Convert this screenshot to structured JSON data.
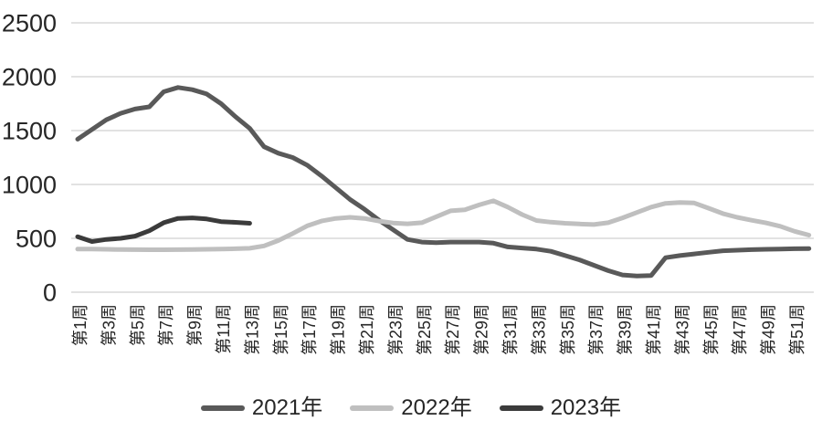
{
  "colors": {
    "background": "#ffffff",
    "gridline": "#d9d9d9",
    "axis_text": "#262626"
  },
  "chart_data": {
    "type": "line",
    "grid": true,
    "legend_position": "bottom",
    "y_axis": {
      "ticks": [
        0,
        500,
        1000,
        1500,
        2000,
        2500
      ],
      "range": [
        0,
        2500
      ]
    },
    "x_axis": {
      "weeks_total": 52,
      "tick_weeks": [
        1,
        3,
        5,
        7,
        9,
        11,
        13,
        15,
        17,
        19,
        21,
        23,
        25,
        27,
        29,
        31,
        33,
        35,
        37,
        39,
        41,
        43,
        45,
        47,
        49,
        51
      ],
      "tick_labels": [
        "第1周",
        "第3周",
        "第5周",
        "第7周",
        "第9周",
        "第11周",
        "第13周",
        "第15周",
        "第17周",
        "第19周",
        "第21周",
        "第23周",
        "第25周",
        "第27周",
        "第29周",
        "第31周",
        "第33周",
        "第35周",
        "第37周",
        "第39周",
        "第41周",
        "第43周",
        "第45周",
        "第47周",
        "第49周",
        "第51周"
      ]
    },
    "series": [
      {
        "name": "2021年",
        "color": "#595959",
        "start_week": 1,
        "values": [
          1420,
          1510,
          1600,
          1660,
          1700,
          1720,
          1860,
          1900,
          1880,
          1840,
          1750,
          1630,
          1520,
          1350,
          1290,
          1250,
          1180,
          1080,
          970,
          860,
          770,
          670,
          580,
          490,
          465,
          460,
          465,
          465,
          465,
          455,
          420,
          410,
          400,
          380,
          340,
          300,
          250,
          200,
          160,
          150,
          155,
          320,
          340,
          355,
          370,
          385,
          390,
          395,
          398,
          400,
          403,
          405
        ]
      },
      {
        "name": "2022年",
        "color": "#bfbfbf",
        "start_week": 1,
        "values": [
          400,
          400,
          398,
          396,
          395,
          394,
          394,
          395,
          396,
          398,
          400,
          403,
          408,
          430,
          480,
          545,
          615,
          660,
          685,
          695,
          685,
          660,
          642,
          635,
          645,
          700,
          755,
          765,
          810,
          848,
          790,
          720,
          665,
          650,
          640,
          633,
          628,
          645,
          690,
          740,
          790,
          825,
          833,
          828,
          780,
          730,
          695,
          668,
          643,
          612,
          565,
          530
        ]
      },
      {
        "name": "2023年",
        "color": "#3b3b3b",
        "start_week": 1,
        "values": [
          515,
          470,
          490,
          500,
          520,
          570,
          645,
          685,
          690,
          680,
          655,
          648,
          640
        ]
      }
    ]
  }
}
